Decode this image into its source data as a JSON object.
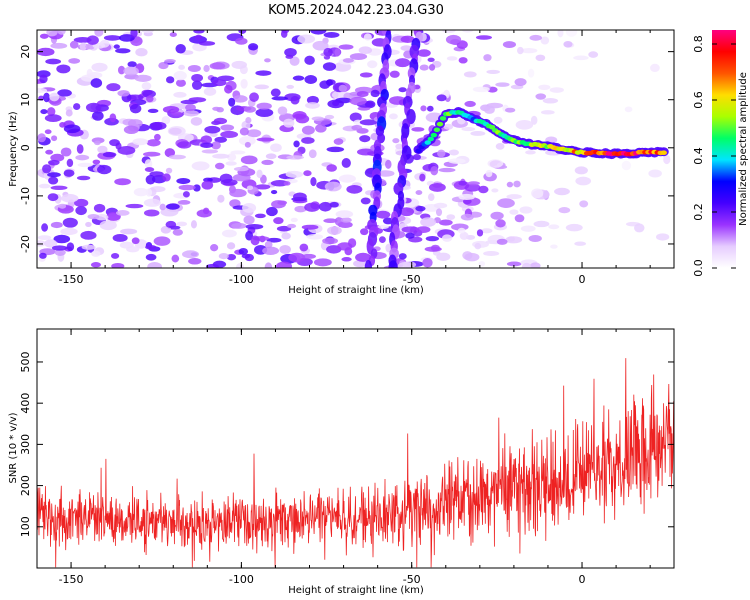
{
  "title": "KOM5.2024.042.23.04.G30",
  "chart_data": [
    {
      "type": "heatmap",
      "xlabel": "Height of straight line (km)",
      "ylabel": "Frequency (Hz)",
      "xlim": [
        -160,
        27
      ],
      "ylim": [
        -25,
        24.5
      ],
      "xticks": [
        -150,
        -100,
        -50,
        0
      ],
      "yticks": [
        -20,
        -10,
        0,
        10,
        20
      ],
      "colorbar": {
        "label": "Normalized spectral amplitude",
        "range": [
          0,
          0.85
        ],
        "ticks": [
          "0.0",
          "0.2",
          "0.4",
          "0.6",
          "0.8"
        ],
        "tick_values": [
          0,
          0.2,
          0.4,
          0.6,
          0.8
        ],
        "colors": [
          "#ffffff",
          "#e6ccff",
          "#9a33ff",
          "#4400ff",
          "#0000ff",
          "#00e5ff",
          "#00ff66",
          "#aaff00",
          "#ffdd00",
          "#ff5500",
          "#ff0000",
          "#ff0080"
        ]
      },
      "ridge": {
        "x": [
          -48,
          -44,
          -40,
          -36,
          -32,
          -28,
          -24,
          -20,
          -16,
          -12,
          -8,
          -4,
          0,
          4,
          8,
          12,
          16,
          20,
          24
        ],
        "y": [
          -0.5,
          2,
          7,
          7.5,
          6,
          5,
          3,
          1.5,
          0.8,
          0.5,
          0,
          -0.5,
          -1,
          -1,
          -1.2,
          -1.3,
          -1.1,
          -0.9,
          -1
        ],
        "amplitude": [
          0.3,
          0.45,
          0.5,
          0.45,
          0.4,
          0.45,
          0.5,
          0.55,
          0.55,
          0.6,
          0.6,
          0.65,
          0.7,
          0.75,
          0.8,
          0.82,
          0.78,
          0.75,
          0.72
        ]
      },
      "vertical_streaks": [
        {
          "x_top": -57,
          "x_bottom": -62,
          "amplitude": 0.25
        },
        {
          "x_top": -48,
          "x_bottom": -56,
          "amplitude": 0.2
        }
      ]
    },
    {
      "type": "line",
      "xlabel": "Height of straight line (km)",
      "ylabel": "SNR (10 * v/v)",
      "xlim": [
        -160,
        27
      ],
      "ylim": [
        0,
        580
      ],
      "xticks": [
        -150,
        -100,
        -50,
        0
      ],
      "yticks": [
        100,
        200,
        300,
        400,
        500
      ],
      "color": "#ee2222",
      "trend": {
        "x": [
          -160,
          -140,
          -120,
          -100,
          -80,
          -60,
          -50,
          -40,
          -30,
          -20,
          -10,
          0,
          10,
          20,
          27
        ],
        "mean": [
          130,
          115,
          110,
          110,
          115,
          125,
          140,
          155,
          175,
          200,
          215,
          230,
          255,
          290,
          330
        ],
        "spread": [
          70,
          65,
          60,
          60,
          60,
          65,
          75,
          80,
          90,
          100,
          105,
          110,
          115,
          120,
          130
        ]
      }
    }
  ]
}
